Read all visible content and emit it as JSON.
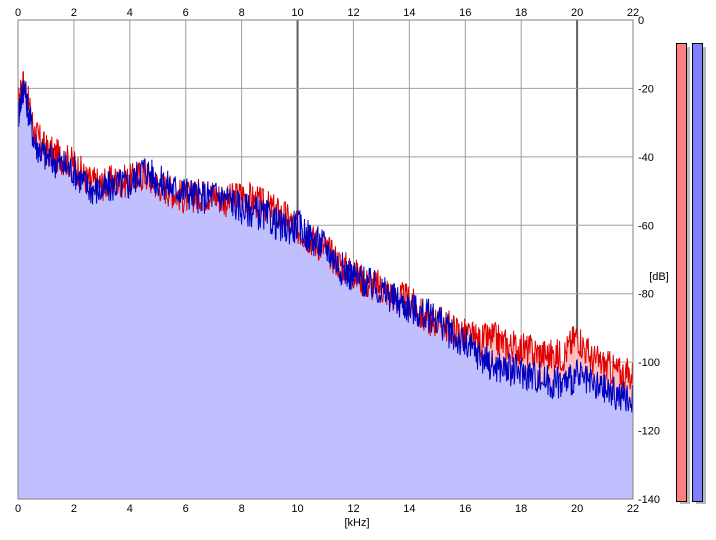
{
  "chart_data": {
    "type": "area",
    "xlabel": "[kHz]",
    "ylabel": "[dB]",
    "xlim": [
      0,
      22
    ],
    "ylim": [
      -140,
      0
    ],
    "x_ticks": [
      0,
      2,
      4,
      6,
      8,
      10,
      12,
      14,
      16,
      18,
      20,
      22
    ],
    "y_ticks": [
      0,
      -20,
      -40,
      -60,
      -80,
      -100,
      -120,
      -140
    ],
    "y_tick_labels": [
      "0",
      "-20",
      "-40",
      "-60",
      "-80",
      "-100",
      "-120",
      "-140"
    ],
    "grid": true,
    "series": [
      {
        "color": "#e00000",
        "fill": "#ffc0c0",
        "x": [
          0,
          0.2,
          0.6,
          1.0,
          1.5,
          2.0,
          2.5,
          3.0,
          3.5,
          4.0,
          4.5,
          5.0,
          5.5,
          6.0,
          6.5,
          7.0,
          7.5,
          8.0,
          8.5,
          9.0,
          9.5,
          10.0,
          10.5,
          11.0,
          11.5,
          12.0,
          12.5,
          13.0,
          13.5,
          14.0,
          14.5,
          15.0,
          15.5,
          16.0,
          16.5,
          17.0,
          17.5,
          18.0,
          18.5,
          19.0,
          19.5,
          20.0,
          20.5,
          21.0,
          21.5,
          22.0
        ],
        "values": [
          -25,
          -18,
          -33,
          -38,
          -40,
          -42,
          -47,
          -48,
          -47,
          -47,
          -45,
          -48,
          -50,
          -52,
          -51,
          -51,
          -53,
          -51,
          -53,
          -55,
          -57,
          -61,
          -64,
          -67,
          -71,
          -74,
          -77,
          -78,
          -81,
          -82,
          -87,
          -88,
          -90,
          -92,
          -94,
          -93,
          -95,
          -96,
          -97,
          -98,
          -98,
          -92,
          -99,
          -101,
          -103,
          -104
        ]
      },
      {
        "color": "#0000c0",
        "fill": "#c0c0ff",
        "x": [
          0,
          0.2,
          0.6,
          1.0,
          1.5,
          2.0,
          2.5,
          3.0,
          3.5,
          4.0,
          4.5,
          5.0,
          5.5,
          6.0,
          6.5,
          7.0,
          7.5,
          8.0,
          8.5,
          9.0,
          9.5,
          10.0,
          10.5,
          11.0,
          11.5,
          12.0,
          12.5,
          13.0,
          13.5,
          14.0,
          14.5,
          15.0,
          15.5,
          16.0,
          16.5,
          17.0,
          17.5,
          18.0,
          18.5,
          19.0,
          19.5,
          20.0,
          20.5,
          21.0,
          21.5,
          22.0
        ],
        "values": [
          -28,
          -19,
          -36,
          -40,
          -42,
          -44,
          -49,
          -50,
          -48,
          -48,
          -43,
          -47,
          -49,
          -50,
          -52,
          -51,
          -52,
          -55,
          -56,
          -58,
          -61,
          -60,
          -64,
          -66,
          -72,
          -75,
          -77,
          -79,
          -82,
          -84,
          -86,
          -87,
          -92,
          -95,
          -98,
          -101,
          -102,
          -103,
          -104,
          -106,
          -106,
          -104,
          -107,
          -108,
          -110,
          -111
        ]
      }
    ]
  }
}
